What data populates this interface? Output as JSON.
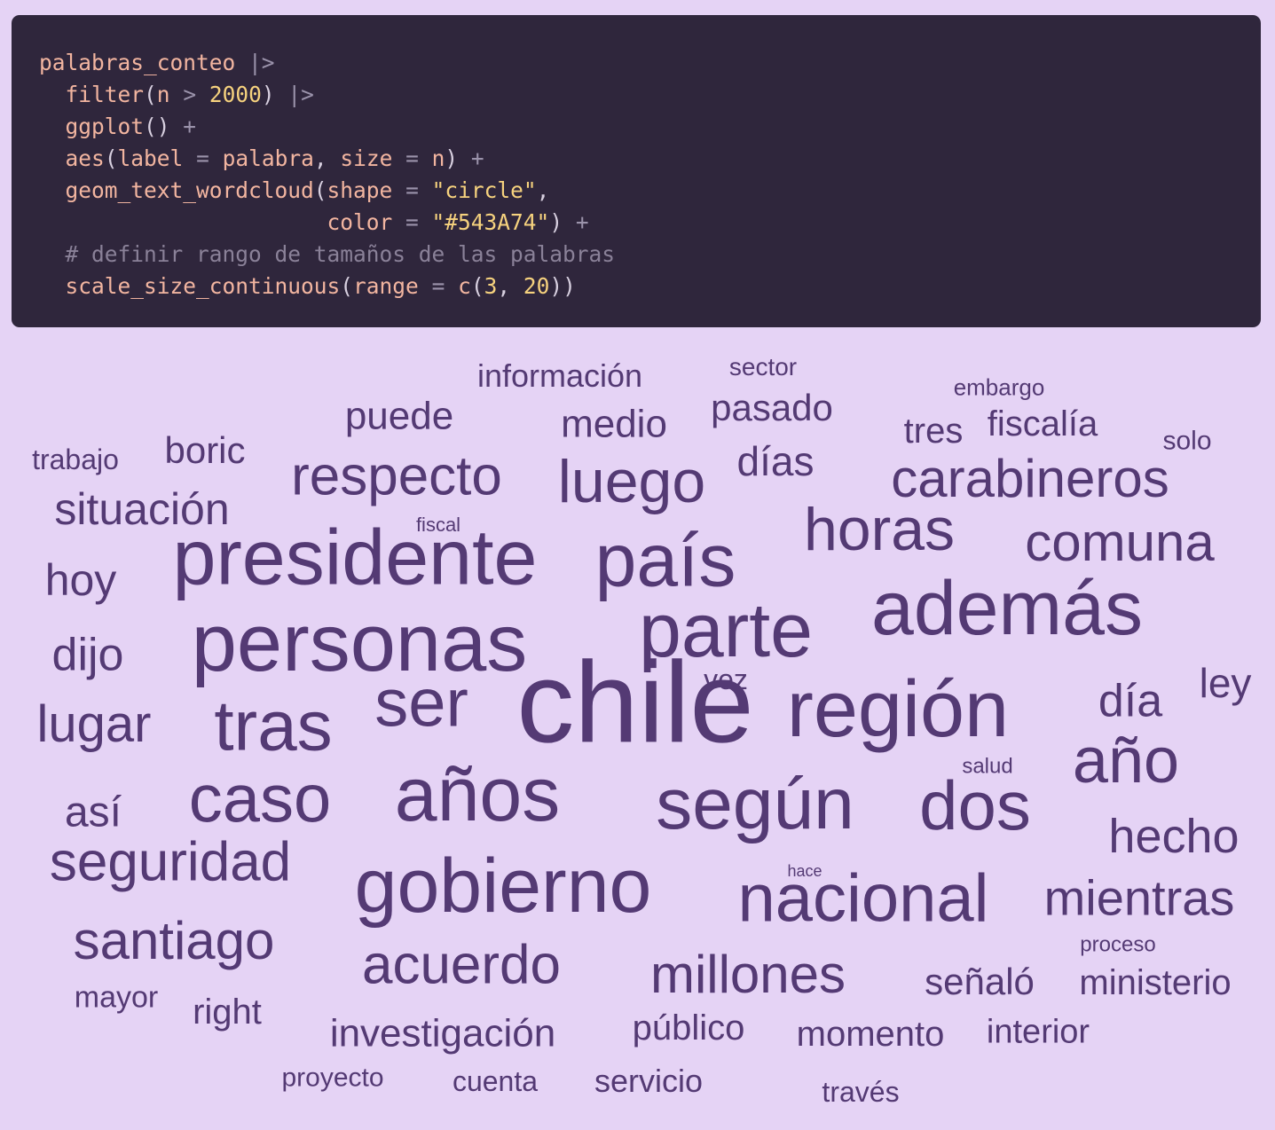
{
  "code": {
    "lines": [
      [
        {
          "t": "palabras_conteo",
          "c": "t-fn"
        },
        {
          "t": " |>",
          "c": "t-op"
        }
      ],
      [
        {
          "t": "  "
        },
        {
          "t": "filter",
          "c": "t-fn"
        },
        {
          "t": "(",
          "c": "t-pn"
        },
        {
          "t": "n",
          "c": "t-fn"
        },
        {
          "t": " > ",
          "c": "t-op"
        },
        {
          "t": "2000",
          "c": "t-num"
        },
        {
          "t": ")",
          "c": "t-pn"
        },
        {
          "t": " |>",
          "c": "t-op"
        }
      ],
      [
        {
          "t": "  "
        },
        {
          "t": "ggplot",
          "c": "t-fn"
        },
        {
          "t": "()",
          "c": "t-pn"
        },
        {
          "t": " +",
          "c": "t-op"
        }
      ],
      [
        {
          "t": "  "
        },
        {
          "t": "aes",
          "c": "t-fn"
        },
        {
          "t": "(",
          "c": "t-pn"
        },
        {
          "t": "label",
          "c": "t-fn"
        },
        {
          "t": " = ",
          "c": "t-op"
        },
        {
          "t": "palabra",
          "c": "t-fn"
        },
        {
          "t": ", ",
          "c": "t-pn"
        },
        {
          "t": "size",
          "c": "t-fn"
        },
        {
          "t": " = ",
          "c": "t-op"
        },
        {
          "t": "n",
          "c": "t-fn"
        },
        {
          "t": ")",
          "c": "t-pn"
        },
        {
          "t": " +",
          "c": "t-op"
        }
      ],
      [
        {
          "t": "  "
        },
        {
          "t": "geom_text_wordcloud",
          "c": "t-fn"
        },
        {
          "t": "(",
          "c": "t-pn"
        },
        {
          "t": "shape",
          "c": "t-fn"
        },
        {
          "t": " = ",
          "c": "t-op"
        },
        {
          "t": "\"circle\"",
          "c": "t-str"
        },
        {
          "t": ",",
          "c": "t-pn"
        }
      ],
      [
        {
          "t": "                      "
        },
        {
          "t": "color",
          "c": "t-fn"
        },
        {
          "t": " = ",
          "c": "t-op"
        },
        {
          "t": "\"#543A74\"",
          "c": "t-str"
        },
        {
          "t": ")",
          "c": "t-pn"
        },
        {
          "t": " +",
          "c": "t-op"
        }
      ],
      [
        {
          "t": "  "
        },
        {
          "t": "# definir rango de tamaños de las palabras",
          "c": "t-cm"
        }
      ],
      [
        {
          "t": "  "
        },
        {
          "t": "scale_size_continuous",
          "c": "t-fn"
        },
        {
          "t": "(",
          "c": "t-pn"
        },
        {
          "t": "range",
          "c": "t-fn"
        },
        {
          "t": " = ",
          "c": "t-op"
        },
        {
          "t": "c",
          "c": "t-fn"
        },
        {
          "t": "(",
          "c": "t-pn"
        },
        {
          "t": "3",
          "c": "t-num"
        },
        {
          "t": ", ",
          "c": "t-pn"
        },
        {
          "t": "20",
          "c": "t-num"
        },
        {
          "t": "))",
          "c": "t-pn"
        }
      ]
    ]
  },
  "wordcloud": {
    "color": "#543A74",
    "words": [
      "chile",
      "personas",
      "presidente",
      "país",
      "parte",
      "además",
      "región",
      "ser",
      "años",
      "según",
      "gobierno",
      "nacional",
      "tras",
      "caso",
      "dos",
      "año",
      "respecto",
      "luego",
      "carabineros",
      "horas",
      "comuna",
      "seguridad",
      "santiago",
      "acuerdo",
      "millones",
      "mientras",
      "hecho",
      "día",
      "lugar",
      "dijo",
      "situación",
      "hoy",
      "así",
      "boric",
      "puede",
      "medio",
      "pasado",
      "días",
      "tres",
      "fiscalía",
      "información",
      "sector",
      "embargo",
      "trabajo",
      "solo",
      "fiscal",
      "ley",
      "vez",
      "salud",
      "hace",
      "proceso",
      "señaló",
      "ministerio",
      "mayor",
      "right",
      "investigación",
      "público",
      "momento",
      "interior",
      "proyecto",
      "cuenta",
      "servicio",
      "través"
    ]
  }
}
